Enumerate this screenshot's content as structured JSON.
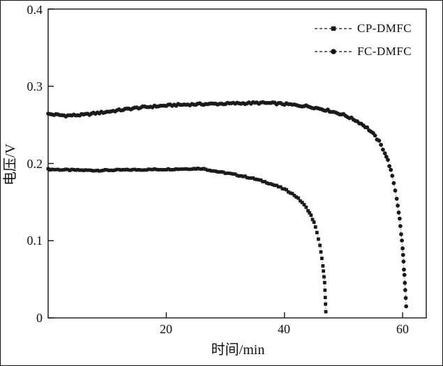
{
  "figure": {
    "title": ""
  },
  "chart_data": {
    "type": "scatter",
    "title": "",
    "xlabel": "时间/min",
    "ylabel": "电压/V",
    "xlim": [
      0,
      64
    ],
    "ylim": [
      0,
      0.4
    ],
    "xticks": [
      20,
      40,
      60
    ],
    "yticks": [
      0,
      0.1,
      0.2,
      0.3,
      0.4
    ],
    "xtick_labels": [
      "20",
      "40",
      "60"
    ],
    "ytick_labels": [
      "0",
      "0.1",
      "0.2",
      "0.3",
      "0.4"
    ],
    "grid": false,
    "legend_position": "top-right",
    "marker_color": "#1a1a1a",
    "series": [
      {
        "name": "CP-DMFC",
        "marker": "square",
        "color": "#1a1a1a",
        "sample_dt": 0.35,
        "noise": 0.0008,
        "points": [
          [
            0,
            0.1925
          ],
          [
            4,
            0.1915
          ],
          [
            8,
            0.191
          ],
          [
            12,
            0.1915
          ],
          [
            16,
            0.192
          ],
          [
            20,
            0.1925
          ],
          [
            23,
            0.193
          ],
          [
            26,
            0.1935
          ],
          [
            27,
            0.192
          ],
          [
            29,
            0.189
          ],
          [
            31,
            0.1865
          ],
          [
            33,
            0.1835
          ],
          [
            35,
            0.18
          ],
          [
            37,
            0.1755
          ],
          [
            39,
            0.17
          ],
          [
            40,
            0.1665
          ],
          [
            41,
            0.1625
          ],
          [
            42,
            0.157
          ],
          [
            43,
            0.1495
          ],
          [
            44,
            0.1395
          ],
          [
            44.5,
            0.1325
          ],
          [
            45,
            0.1235
          ],
          [
            45.5,
            0.111
          ],
          [
            46,
            0.0935
          ],
          [
            46.5,
            0.068
          ],
          [
            46.8,
            0.045
          ],
          [
            47,
            0.008
          ]
        ]
      },
      {
        "name": "FC-DMFC",
        "marker": "circle",
        "color": "#1a1a1a",
        "sample_dt": 0.35,
        "noise": 0.0012,
        "points": [
          [
            0,
            0.264
          ],
          [
            3,
            0.262
          ],
          [
            6,
            0.263
          ],
          [
            9,
            0.266
          ],
          [
            12,
            0.269
          ],
          [
            15,
            0.272
          ],
          [
            18,
            0.274
          ],
          [
            21,
            0.2755
          ],
          [
            24,
            0.2765
          ],
          [
            27,
            0.277
          ],
          [
            30,
            0.2775
          ],
          [
            33,
            0.278
          ],
          [
            36,
            0.2785
          ],
          [
            38,
            0.278
          ],
          [
            40,
            0.277
          ],
          [
            42,
            0.2755
          ],
          [
            44,
            0.274
          ],
          [
            46,
            0.271
          ],
          [
            48,
            0.2675
          ],
          [
            50,
            0.263
          ],
          [
            52,
            0.256
          ],
          [
            53,
            0.2515
          ],
          [
            54,
            0.246
          ],
          [
            55,
            0.2385
          ],
          [
            56,
            0.2285
          ],
          [
            57,
            0.214
          ],
          [
            57.5,
            0.204
          ],
          [
            58,
            0.191
          ],
          [
            58.5,
            0.175
          ],
          [
            59,
            0.155
          ],
          [
            59.5,
            0.128
          ],
          [
            60,
            0.09
          ],
          [
            60.3,
            0.055
          ],
          [
            60.6,
            0.015
          ]
        ]
      }
    ]
  }
}
